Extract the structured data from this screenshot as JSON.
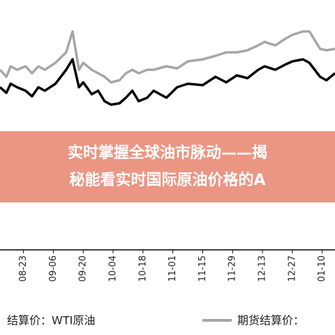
{
  "chart_data": {
    "type": "line",
    "title": [
      "实时掌握全球油市脉动——揭",
      "秘能看实时国际原油价格的A"
    ],
    "x": [
      -11,
      -8,
      -6,
      -3,
      1,
      4,
      7,
      10,
      15,
      20,
      23,
      26,
      28,
      32,
      35,
      38,
      41,
      45,
      48,
      51,
      54,
      58,
      61,
      67,
      72,
      77,
      84,
      90,
      95,
      100,
      105,
      110,
      113,
      118,
      123,
      126,
      131,
      134,
      139,
      142,
      146
    ],
    "series": [
      {
        "name": "结算价：WTI原油",
        "color": "#000000",
        "values": [
          235,
          227,
          240,
          235,
          230,
          222,
          235,
          230,
          240,
          260,
          275,
          235,
          242,
          225,
          230,
          215,
          210,
          212,
          220,
          230,
          215,
          220,
          230,
          220,
          235,
          240,
          238,
          250,
          242,
          252,
          248,
          260,
          265,
          260,
          268,
          272,
          275,
          270,
          250,
          245,
          255
        ]
      },
      {
        "name": "期货结算价：",
        "color": "#a6a6a6",
        "values": [
          260,
          250,
          265,
          260,
          265,
          255,
          265,
          260,
          270,
          285,
          315,
          260,
          270,
          260,
          255,
          250,
          242,
          245,
          255,
          260,
          255,
          260,
          260,
          265,
          262,
          272,
          275,
          280,
          285,
          285,
          288,
          295,
          300,
          295,
          305,
          310,
          315,
          315,
          290,
          288,
          290
        ]
      }
    ],
    "xlim": [
      -11,
      146
    ],
    "xticks": [
      {
        "value": 0,
        "label": "08-23"
      },
      {
        "value": 14,
        "label": "09-06"
      },
      {
        "value": 28,
        "label": "09-20"
      },
      {
        "value": 42,
        "label": "10-04"
      },
      {
        "value": 56,
        "label": "10-18"
      },
      {
        "value": 70,
        "label": "11-01"
      },
      {
        "value": 84,
        "label": "11-15"
      },
      {
        "value": 98,
        "label": "11-29"
      },
      {
        "value": 112,
        "label": "12-13"
      },
      {
        "value": 126,
        "label": "12-27"
      },
      {
        "value": 140,
        "label": "01-10"
      }
    ],
    "ylim": [
      0,
      360
    ]
  }
}
